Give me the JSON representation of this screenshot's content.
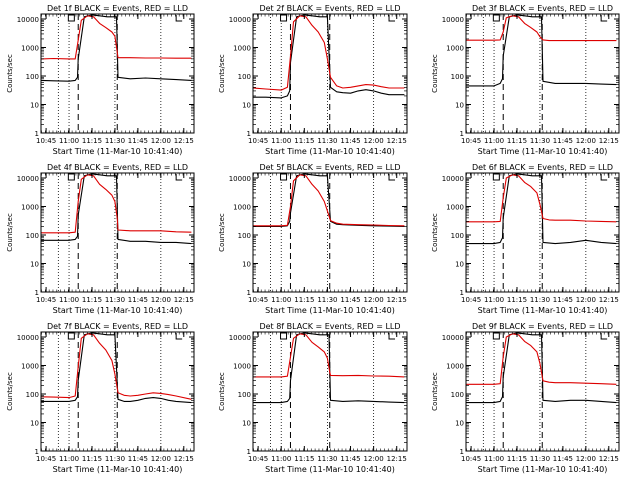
{
  "page": {
    "background": "#ffffff"
  },
  "colors": {
    "events": "#000000",
    "lld": "#dd0000",
    "axis": "#000000"
  },
  "common": {
    "xlabel": "Start Time (11-Mar-10 10:41:40)",
    "ylabel": "Counts/sec",
    "ytick_values": [
      1,
      10,
      100,
      1000,
      10000
    ],
    "ytick_labels": [
      "1",
      "10",
      "100",
      "1000",
      "10000"
    ],
    "xtick_labels": [
      "10:45",
      "11:00",
      "11:15",
      "11:30",
      "11:45",
      "12:00",
      "12:15"
    ],
    "xtick_minutes": [
      45,
      60,
      75,
      90,
      105,
      120,
      135
    ],
    "xlim_minutes": [
      41.67,
      141.67
    ],
    "ylim": [
      1,
      15000
    ],
    "y_scale": "log",
    "dotted_lines_minutes": [
      53,
      60,
      90,
      120
    ],
    "dashed_lines_minutes": [
      66,
      91.5
    ],
    "legend_marks": [
      "square",
      "L-bracket"
    ],
    "legend_placement": "top"
  },
  "chart_data": [
    {
      "type": "line",
      "title": "Det 1f BLACK = Events, RED = LLD",
      "series": [
        {
          "name": "Events",
          "color": "#000000",
          "x": [
            42,
            50,
            60,
            64,
            65.5,
            66,
            70,
            75,
            80,
            85,
            90,
            91,
            92,
            100,
            110,
            120,
            130,
            140
          ],
          "y": [
            70,
            68,
            66,
            70,
            90,
            400,
            12000,
            14000,
            13000,
            12000,
            12000,
            12000,
            90,
            80,
            85,
            80,
            75,
            70
          ]
        },
        {
          "name": "LLD",
          "color": "#dd0000",
          "x": [
            42,
            50,
            60,
            64,
            66,
            68,
            72,
            76,
            80,
            84,
            88,
            90,
            91.5,
            92,
            100,
            110,
            120,
            130,
            140
          ],
          "y": [
            400,
            410,
            400,
            400,
            1800,
            9000,
            13000,
            12000,
            7000,
            5000,
            3500,
            2500,
            700,
            440,
            440,
            430,
            430,
            420,
            420
          ]
        }
      ]
    },
    {
      "type": "line",
      "title": "Det 2f BLACK = Events, RED = LLD",
      "series": [
        {
          "name": "Events",
          "color": "#000000",
          "x": [
            42,
            50,
            60,
            64,
            65.5,
            66,
            70,
            75,
            80,
            85,
            90,
            92,
            96,
            100,
            105,
            110,
            115,
            120,
            125,
            130,
            140
          ],
          "y": [
            18,
            18,
            17,
            20,
            30,
            300,
            12000,
            14000,
            13000,
            12000,
            12000,
            40,
            28,
            26,
            25,
            30,
            33,
            30,
            25,
            22,
            22
          ]
        },
        {
          "name": "LLD",
          "color": "#dd0000",
          "x": [
            42,
            50,
            60,
            64,
            66,
            68,
            72,
            76,
            80,
            84,
            88,
            90,
            92,
            96,
            100,
            105,
            110,
            115,
            120,
            125,
            130,
            140
          ],
          "y": [
            38,
            35,
            32,
            40,
            500,
            8000,
            13000,
            12000,
            6000,
            3500,
            1500,
            400,
            90,
            45,
            38,
            40,
            45,
            50,
            48,
            42,
            38,
            38
          ]
        }
      ]
    },
    {
      "type": "line",
      "title": "Det 3f BLACK = Events, RED = LLD",
      "series": [
        {
          "name": "Events",
          "color": "#000000",
          "x": [
            42,
            50,
            60,
            64,
            65.5,
            66,
            70,
            75,
            80,
            85,
            90,
            91,
            92,
            100,
            110,
            120,
            130,
            140
          ],
          "y": [
            45,
            45,
            45,
            55,
            80,
            500,
            12000,
            14000,
            13000,
            12000,
            12000,
            12000,
            65,
            55,
            55,
            55,
            52,
            50
          ]
        },
        {
          "name": "LLD",
          "color": "#dd0000",
          "x": [
            42,
            50,
            60,
            64,
            66,
            68,
            72,
            76,
            80,
            84,
            88,
            90,
            92,
            96,
            100,
            110,
            120,
            130,
            140
          ],
          "y": [
            1800,
            1800,
            1800,
            1850,
            3500,
            11000,
            13000,
            12000,
            7000,
            5000,
            3500,
            2400,
            1850,
            1750,
            1750,
            1750,
            1750,
            1750,
            1750
          ]
        }
      ]
    },
    {
      "type": "line",
      "title": "Det 4f BLACK = Events, RED = LLD",
      "series": [
        {
          "name": "Events",
          "color": "#000000",
          "x": [
            42,
            50,
            60,
            64,
            65.5,
            66,
            70,
            75,
            80,
            85,
            90,
            91,
            92,
            100,
            110,
            120,
            130,
            140
          ],
          "y": [
            65,
            65,
            65,
            70,
            90,
            500,
            12000,
            14000,
            13000,
            12000,
            12000,
            12000,
            70,
            60,
            60,
            55,
            55,
            50
          ]
        },
        {
          "name": "LLD",
          "color": "#dd0000",
          "x": [
            42,
            50,
            60,
            64,
            66,
            68,
            72,
            76,
            80,
            84,
            88,
            90,
            91.5,
            92,
            100,
            110,
            120,
            130,
            140
          ],
          "y": [
            120,
            120,
            120,
            125,
            1500,
            9000,
            13000,
            12000,
            6000,
            4000,
            2500,
            1500,
            400,
            150,
            140,
            140,
            140,
            130,
            125
          ]
        }
      ]
    },
    {
      "type": "line",
      "title": "Det 5f BLACK = Events, RED = LLD",
      "series": [
        {
          "name": "Events",
          "color": "#000000",
          "x": [
            42,
            50,
            60,
            64,
            65.5,
            66,
            70,
            75,
            80,
            85,
            90,
            92,
            96,
            100,
            110,
            120,
            130,
            140
          ],
          "y": [
            200,
            200,
            200,
            210,
            300,
            600,
            12000,
            14000,
            13000,
            12000,
            12000,
            300,
            240,
            230,
            220,
            210,
            205,
            200
          ]
        },
        {
          "name": "LLD",
          "color": "#dd0000",
          "x": [
            42,
            50,
            60,
            64,
            66,
            68,
            72,
            76,
            80,
            84,
            88,
            90,
            92,
            96,
            100,
            110,
            120,
            130,
            140
          ],
          "y": [
            210,
            210,
            210,
            220,
            1000,
            8000,
            13000,
            12000,
            6000,
            3500,
            1500,
            700,
            320,
            260,
            240,
            230,
            225,
            215,
            210
          ]
        }
      ]
    },
    {
      "type": "line",
      "title": "Det 6f BLACK = Events, RED = LLD",
      "series": [
        {
          "name": "Events",
          "color": "#000000",
          "x": [
            42,
            50,
            60,
            64,
            65.5,
            66,
            70,
            75,
            80,
            85,
            90,
            91,
            92,
            100,
            110,
            120,
            130,
            140
          ],
          "y": [
            50,
            50,
            50,
            55,
            80,
            400,
            12000,
            14000,
            13000,
            12000,
            12000,
            12000,
            55,
            50,
            55,
            65,
            55,
            50
          ]
        },
        {
          "name": "LLD",
          "color": "#dd0000",
          "x": [
            42,
            50,
            60,
            64,
            66,
            68,
            72,
            76,
            80,
            84,
            88,
            90,
            92,
            96,
            100,
            110,
            120,
            130,
            140
          ],
          "y": [
            290,
            290,
            290,
            300,
            2000,
            10000,
            13000,
            12000,
            7000,
            5000,
            3000,
            1200,
            380,
            340,
            330,
            330,
            310,
            300,
            290
          ]
        }
      ]
    },
    {
      "type": "line",
      "title": "Det 7f BLACK = Events, RED = LLD",
      "series": [
        {
          "name": "Events",
          "color": "#000000",
          "x": [
            42,
            50,
            60,
            64,
            65.5,
            66,
            70,
            75,
            80,
            85,
            90,
            92,
            96,
            100,
            105,
            110,
            115,
            120,
            125,
            130,
            140
          ],
          "y": [
            55,
            55,
            55,
            60,
            80,
            300,
            12000,
            14000,
            13000,
            12000,
            12000,
            65,
            55,
            55,
            60,
            70,
            75,
            70,
            60,
            55,
            50
          ]
        },
        {
          "name": "LLD",
          "color": "#dd0000",
          "x": [
            42,
            50,
            60,
            64,
            66,
            68,
            72,
            76,
            80,
            84,
            88,
            90,
            92,
            96,
            100,
            105,
            110,
            115,
            120,
            125,
            130,
            140
          ],
          "y": [
            80,
            78,
            75,
            85,
            900,
            9000,
            13000,
            12000,
            6000,
            3500,
            1500,
            500,
            110,
            90,
            85,
            90,
            100,
            110,
            105,
            95,
            85,
            65
          ]
        }
      ]
    },
    {
      "type": "line",
      "title": "Det 8f BLACK = Events, RED = LLD",
      "series": [
        {
          "name": "Events",
          "color": "#000000",
          "x": [
            42,
            50,
            60,
            64,
            65.5,
            66,
            70,
            75,
            80,
            85,
            90,
            91,
            92,
            100,
            110,
            120,
            130,
            140
          ],
          "y": [
            50,
            50,
            50,
            55,
            70,
            300,
            12000,
            14000,
            13000,
            12000,
            12000,
            12000,
            60,
            55,
            58,
            55,
            52,
            50
          ]
        },
        {
          "name": "LLD",
          "color": "#dd0000",
          "x": [
            42,
            50,
            60,
            64,
            66,
            68,
            72,
            76,
            80,
            84,
            88,
            90,
            91.5,
            92,
            100,
            110,
            120,
            130,
            140
          ],
          "y": [
            400,
            400,
            400,
            420,
            2000,
            9000,
            13000,
            12000,
            6500,
            4500,
            3000,
            1800,
            600,
            450,
            440,
            450,
            430,
            420,
            400
          ]
        }
      ]
    },
    {
      "type": "line",
      "title": "Det 9f BLACK = Events, RED = LLD",
      "series": [
        {
          "name": "Events",
          "color": "#000000",
          "x": [
            42,
            50,
            60,
            64,
            65.5,
            66,
            70,
            75,
            80,
            85,
            90,
            91,
            92,
            100,
            110,
            120,
            130,
            140
          ],
          "y": [
            50,
            50,
            50,
            55,
            80,
            400,
            12000,
            14000,
            13000,
            12000,
            12000,
            12000,
            60,
            55,
            60,
            60,
            55,
            50
          ]
        },
        {
          "name": "LLD",
          "color": "#dd0000",
          "x": [
            42,
            50,
            60,
            64,
            66,
            68,
            72,
            76,
            80,
            84,
            88,
            90,
            92,
            96,
            100,
            110,
            120,
            130,
            140
          ],
          "y": [
            220,
            220,
            220,
            230,
            2000,
            10000,
            13000,
            12000,
            7000,
            5000,
            3000,
            1200,
            290,
            260,
            250,
            250,
            240,
            230,
            220
          ]
        }
      ]
    }
  ]
}
